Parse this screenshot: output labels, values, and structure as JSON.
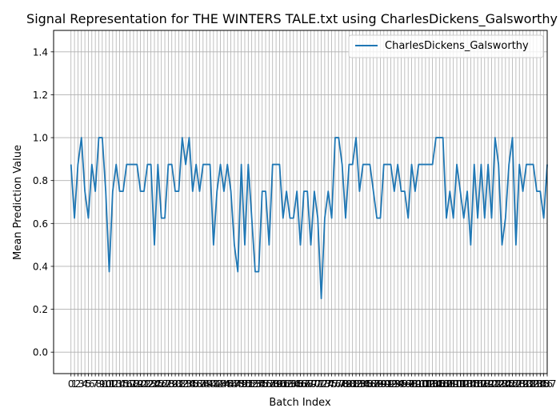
{
  "chart_data": {
    "type": "line",
    "title": "Signal Representation for THE WINTERS TALE.txt using CharlesDickens_Galsworthy",
    "xlabel": "Batch Index",
    "ylabel": "Mean Prediction Value",
    "xlim": [
      -5,
      137
    ],
    "ylim": [
      -0.1,
      1.5
    ],
    "yticks": [
      0.0,
      0.2,
      0.4,
      0.6,
      0.8,
      1.0,
      1.2,
      1.4
    ],
    "ytick_labels": [
      "0.0",
      "0.2",
      "0.4",
      "0.6",
      "0.8",
      "1.0",
      "1.2",
      "1.4"
    ],
    "grid": true,
    "legend_position": "upper right",
    "line_color": "#1f77b4",
    "series": [
      {
        "name": "CharlesDickens_Galsworthy",
        "values": [
          0.875,
          0.625,
          0.875,
          1.0,
          0.75,
          0.625,
          0.875,
          0.75,
          1.0,
          1.0,
          0.75,
          0.375,
          0.75,
          0.875,
          0.75,
          0.75,
          0.875,
          0.875,
          0.875,
          0.875,
          0.75,
          0.75,
          0.875,
          0.875,
          0.5,
          0.875,
          0.625,
          0.625,
          0.875,
          0.875,
          0.75,
          0.75,
          1.0,
          0.875,
          1.0,
          0.75,
          0.875,
          0.75,
          0.875,
          0.875,
          0.875,
          0.5,
          0.75,
          0.875,
          0.75,
          0.875,
          0.75,
          0.5,
          0.375,
          0.875,
          0.5,
          0.875,
          0.625,
          0.375,
          0.375,
          0.75,
          0.75,
          0.5,
          0.875,
          0.875,
          0.875,
          0.625,
          0.75,
          0.625,
          0.625,
          0.75,
          0.5,
          0.75,
          0.75,
          0.5,
          0.75,
          0.625,
          0.25,
          0.625,
          0.75,
          0.625,
          1.0,
          1.0,
          0.875,
          0.625,
          0.875,
          0.875,
          1.0,
          0.75,
          0.875,
          0.875,
          0.875,
          0.75,
          0.625,
          0.625,
          0.875,
          0.875,
          0.875,
          0.75,
          0.875,
          0.75,
          0.75,
          0.625,
          0.875,
          0.75,
          0.875,
          0.875,
          0.875,
          0.875,
          0.875,
          1.0,
          1.0,
          1.0,
          0.625,
          0.75,
          0.625,
          0.875,
          0.75,
          0.625,
          0.75,
          0.5,
          0.875,
          0.625,
          0.875,
          0.625,
          0.875,
          0.625,
          1.0,
          0.875,
          0.5,
          0.625,
          0.875,
          1.0,
          0.5,
          0.875,
          0.75,
          0.875,
          0.875,
          0.875,
          0.75,
          0.75,
          0.625,
          0.875
        ]
      }
    ]
  }
}
